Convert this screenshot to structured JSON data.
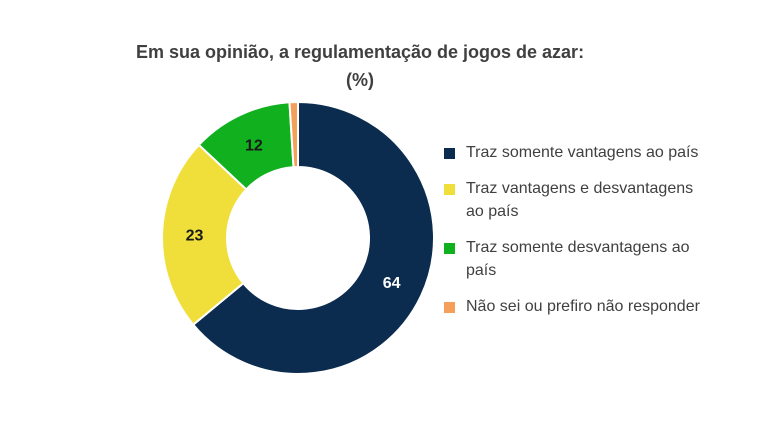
{
  "chart_data": {
    "type": "donut",
    "title": "Em sua opinião, a regulamentação de jogos de azar:",
    "subtitle": "(%)",
    "series": [
      {
        "name": "Traz somente vantagens ao país",
        "value": 64,
        "color": "#0b2c4f",
        "label_color": "#ffffff"
      },
      {
        "name": "Traz vantagens e desvantagens ao país",
        "value": 23,
        "color": "#f0df3a",
        "label_color": "#1a1a1a"
      },
      {
        "name": "Traz somente desvantagens ao país",
        "value": 12,
        "color": "#10b01e",
        "label_color": "#1a1a1a"
      },
      {
        "name": "Não sei ou prefiro não responder",
        "value": 1,
        "color": "#f4a05a",
        "label_color": "#1a1a1a"
      }
    ],
    "legend_position": "right"
  }
}
